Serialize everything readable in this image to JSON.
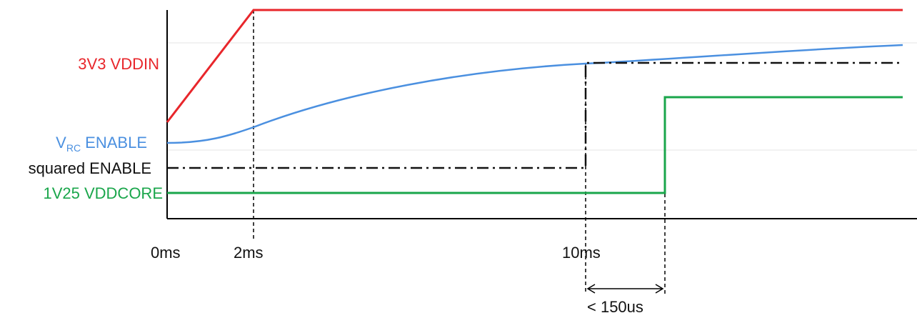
{
  "diagram": {
    "signals": [
      {
        "id": "vddin",
        "label": "3V3 VDDIN",
        "color": "#e8262b"
      },
      {
        "id": "vrc",
        "label_main": "V",
        "label_sub": "RC",
        "label_tail": " ENABLE",
        "color": "#4b90e0"
      },
      {
        "id": "squared",
        "label": "squared ENABLE",
        "color": "#111111"
      },
      {
        "id": "vddcore",
        "label": "1V25 VDDCORE",
        "color": "#1aa64b"
      }
    ],
    "time_labels": {
      "t0": "0ms",
      "t2": "2ms",
      "t10": "10ms"
    },
    "delay_annotation": "< 150us"
  }
}
